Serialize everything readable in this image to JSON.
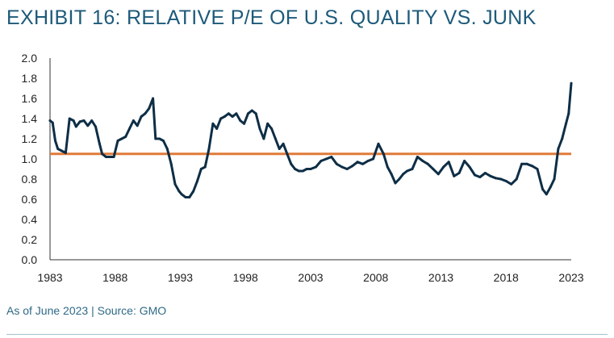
{
  "title": "EXHIBIT 16: RELATIVE P/E OF U.S. QUALITY VS. JUNK",
  "footnote": "As of June 2023 | Source: GMO",
  "colors": {
    "line": "#0e2e46",
    "reference": "#e07b39",
    "title": "#1d5a7a"
  },
  "chart_data": {
    "type": "line",
    "title": "EXHIBIT 16: RELATIVE P/E OF U.S. QUALITY VS. JUNK",
    "xlabel": "",
    "ylabel": "",
    "xlim": [
      1983,
      2023
    ],
    "ylim": [
      0.0,
      2.0
    ],
    "x_ticks": [
      "1983",
      "1988",
      "1993",
      "1998",
      "2003",
      "2008",
      "2013",
      "2018",
      "2023"
    ],
    "y_ticks": [
      "0.0",
      "0.2",
      "0.4",
      "0.6",
      "0.8",
      "1.0",
      "1.2",
      "1.4",
      "1.6",
      "1.8",
      "2.0"
    ],
    "grid": false,
    "reference_line": {
      "y": 1.05
    },
    "series": [
      {
        "x": [
          1983.0,
          1983.2,
          1983.4,
          1983.6,
          1983.9,
          1984.2,
          1984.5,
          1984.8,
          1985.0,
          1985.3,
          1985.6,
          1985.9,
          1986.2,
          1986.5,
          1986.8,
          1987.0,
          1987.3,
          1987.6,
          1987.9,
          1988.2,
          1988.5,
          1988.8,
          1989.1,
          1989.4,
          1989.7,
          1990.0,
          1990.3,
          1990.6,
          1990.9,
          1991.1,
          1991.4,
          1991.7,
          1992.0,
          1992.3,
          1992.6,
          1992.9,
          1993.1,
          1993.4,
          1993.7,
          1994.0,
          1994.3,
          1994.6,
          1994.9,
          1995.2,
          1995.5,
          1995.8,
          1996.1,
          1996.4,
          1996.7,
          1997.0,
          1997.3,
          1997.6,
          1997.9,
          1998.2,
          1998.5,
          1998.8,
          1999.1,
          1999.4,
          1999.7,
          2000.0,
          2000.3,
          2000.6,
          2000.9,
          2001.2,
          2001.5,
          2001.8,
          2002.1,
          2002.4,
          2002.7,
          2003.0,
          2003.4,
          2003.8,
          2004.2,
          2004.6,
          2005.0,
          2005.4,
          2005.8,
          2006.2,
          2006.6,
          2007.0,
          2007.4,
          2007.8,
          2008.2,
          2008.6,
          2008.9,
          2009.2,
          2009.5,
          2009.8,
          2010.1,
          2010.4,
          2010.8,
          2011.2,
          2011.6,
          2012.0,
          2012.4,
          2012.8,
          2013.2,
          2013.6,
          2014.0,
          2014.4,
          2014.8,
          2015.2,
          2015.6,
          2016.0,
          2016.4,
          2016.8,
          2017.2,
          2017.6,
          2018.0,
          2018.4,
          2018.8,
          2019.2,
          2019.6,
          2020.0,
          2020.4,
          2020.8,
          2021.1,
          2021.4,
          2021.7,
          2022.0,
          2022.3,
          2022.6,
          2022.8,
          2023.0
        ],
        "values": [
          1.38,
          1.36,
          1.18,
          1.1,
          1.08,
          1.06,
          1.4,
          1.38,
          1.32,
          1.37,
          1.38,
          1.33,
          1.38,
          1.32,
          1.15,
          1.05,
          1.02,
          1.02,
          1.02,
          1.18,
          1.2,
          1.22,
          1.3,
          1.38,
          1.33,
          1.42,
          1.45,
          1.5,
          1.6,
          1.2,
          1.2,
          1.18,
          1.1,
          0.95,
          0.75,
          0.68,
          0.65,
          0.62,
          0.62,
          0.68,
          0.78,
          0.9,
          0.92,
          1.1,
          1.35,
          1.3,
          1.4,
          1.42,
          1.45,
          1.42,
          1.45,
          1.38,
          1.35,
          1.45,
          1.48,
          1.45,
          1.3,
          1.2,
          1.35,
          1.3,
          1.2,
          1.1,
          1.15,
          1.05,
          0.95,
          0.9,
          0.88,
          0.88,
          0.9,
          0.9,
          0.92,
          0.98,
          1.0,
          1.02,
          0.95,
          0.92,
          0.9,
          0.93,
          0.97,
          0.95,
          0.98,
          1.0,
          1.15,
          1.05,
          0.92,
          0.85,
          0.76,
          0.8,
          0.85,
          0.88,
          0.9,
          1.02,
          0.98,
          0.95,
          0.9,
          0.85,
          0.92,
          0.97,
          0.83,
          0.86,
          0.98,
          0.92,
          0.84,
          0.82,
          0.86,
          0.83,
          0.81,
          0.8,
          0.78,
          0.75,
          0.8,
          0.95,
          0.95,
          0.93,
          0.9,
          0.7,
          0.65,
          0.72,
          0.8,
          1.1,
          1.2,
          1.35,
          1.45,
          1.75
        ]
      }
    ]
  }
}
